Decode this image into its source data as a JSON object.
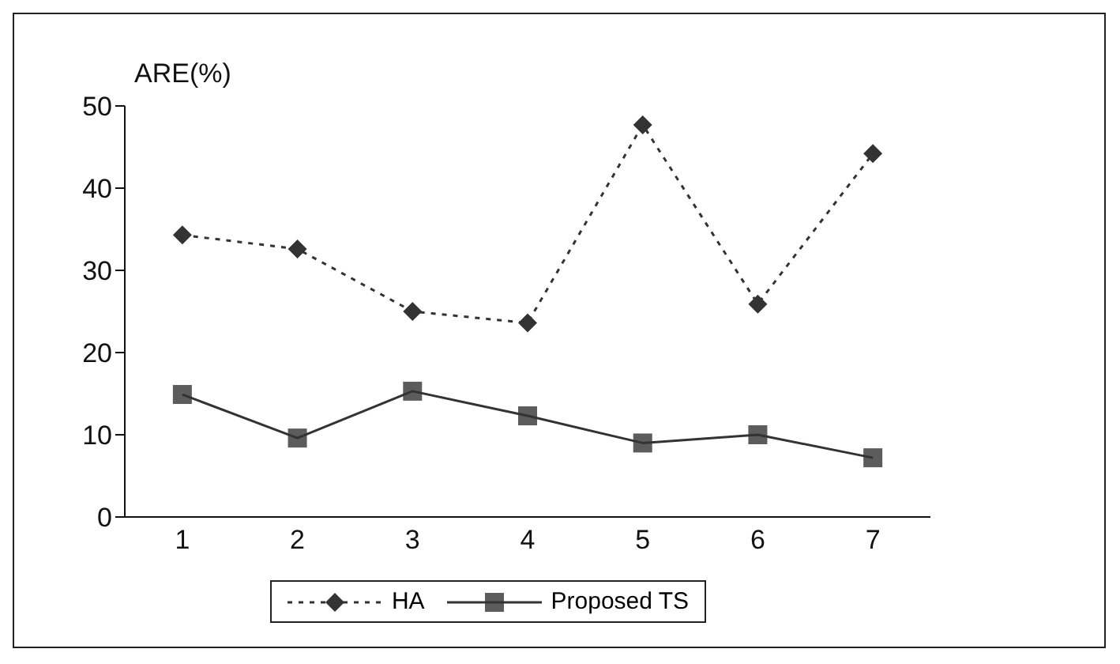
{
  "chart_data": {
    "type": "line",
    "ylabel": "ARE(%)",
    "categories": [
      "1",
      "2",
      "3",
      "4",
      "5",
      "6",
      "7"
    ],
    "series": [
      {
        "name": "HA",
        "color": "#333333",
        "marker": "diamond",
        "line_style": "dotted",
        "values": [
          34.3,
          32.6,
          25,
          23.6,
          47.7,
          25.9,
          44.2
        ]
      },
      {
        "name": "Proposed TS",
        "color": "#333333",
        "marker": "square",
        "line_style": "solid",
        "values": [
          14.9,
          9.6,
          15.3,
          12.3,
          9,
          10,
          7.2
        ]
      }
    ],
    "ylim": [
      0,
      50
    ],
    "yticks": [
      0,
      10,
      20,
      30,
      40,
      50
    ],
    "grid": false,
    "legend": "bottom"
  }
}
